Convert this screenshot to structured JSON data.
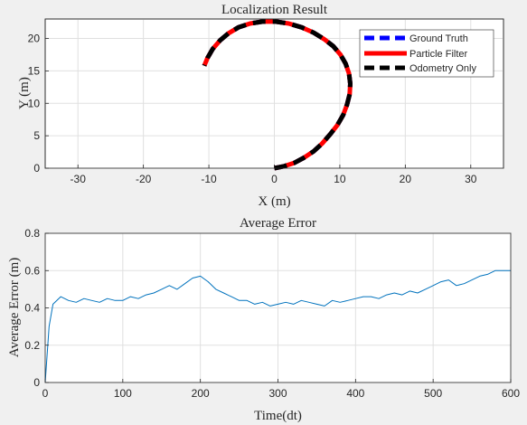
{
  "chart_data": [
    {
      "type": "line",
      "title": "Localization Result",
      "xlabel": "X (m)",
      "ylabel": "Y (m)",
      "xlim": [
        -35,
        35
      ],
      "ylim": [
        0,
        23
      ],
      "xticks": [
        -30,
        -20,
        -10,
        0,
        10,
        20,
        30
      ],
      "yticks": [
        0,
        5,
        10,
        15,
        20
      ],
      "grid": true,
      "legend": "top-right",
      "series": [
        {
          "name": "Ground Truth",
          "color": "#0000ff",
          "line_style": "dashed",
          "x": [
            0,
            1.5,
            3,
            4.5,
            6,
            7.3,
            8.5,
            9.6,
            10.5,
            11.1,
            11.5,
            11.6,
            11.4,
            10.9,
            10.1,
            9.0,
            7.6,
            6.0,
            4.2,
            2.2,
            0.2,
            -1.8,
            -3.7,
            -5.5,
            -7.0,
            -8.3,
            -9.4,
            -10.2,
            -10.7
          ],
          "y": [
            0,
            0.3,
            0.8,
            1.6,
            2.6,
            3.8,
            5.2,
            6.6,
            8.2,
            9.8,
            11.4,
            13.0,
            14.6,
            16.1,
            17.5,
            18.8,
            19.9,
            20.9,
            21.7,
            22.3,
            22.6,
            22.6,
            22.3,
            21.7,
            20.8,
            19.7,
            18.4,
            17.0,
            15.8
          ]
        },
        {
          "name": "Particle Filter",
          "color": "#ff0000",
          "line_style": "solid",
          "x": [
            0,
            1.5,
            3,
            4.5,
            6,
            7.3,
            8.5,
            9.6,
            10.5,
            11.1,
            11.5,
            11.6,
            11.4,
            10.9,
            10.1,
            9.0,
            7.6,
            6.0,
            4.2,
            2.2,
            0.2,
            -1.8,
            -3.7,
            -5.5,
            -7.0,
            -8.3,
            -9.4,
            -10.2,
            -10.7
          ],
          "y": [
            0,
            0.3,
            0.8,
            1.6,
            2.6,
            3.8,
            5.2,
            6.6,
            8.2,
            9.8,
            11.4,
            13.0,
            14.6,
            16.1,
            17.5,
            18.8,
            19.9,
            20.9,
            21.7,
            22.3,
            22.6,
            22.6,
            22.3,
            21.7,
            20.8,
            19.7,
            18.4,
            17.0,
            15.8
          ]
        },
        {
          "name": "Odometry Only",
          "color": "#000000",
          "line_style": "dashed",
          "x": [
            0,
            1.5,
            3,
            4.5,
            6,
            7.3,
            8.5,
            9.6,
            10.5,
            11.1,
            11.5,
            11.6,
            11.4,
            10.9,
            10.1,
            9.0,
            7.6,
            6.0,
            4.2,
            2.2,
            0.2,
            -1.8,
            -3.7,
            -5.5,
            -7.0,
            -8.3,
            -9.4,
            -10.2,
            -10.7
          ],
          "y": [
            0,
            0.3,
            0.8,
            1.6,
            2.6,
            3.8,
            5.2,
            6.6,
            8.2,
            9.8,
            11.4,
            13.0,
            14.6,
            16.1,
            17.5,
            18.8,
            19.9,
            20.9,
            21.7,
            22.3,
            22.6,
            22.6,
            22.3,
            21.7,
            20.8,
            19.7,
            18.4,
            17.0,
            15.8
          ]
        }
      ]
    },
    {
      "type": "line",
      "title": "Average Error",
      "xlabel": "Time(dt)",
      "ylabel": "Average Error (m)",
      "xlim": [
        0,
        600
      ],
      "ylim": [
        0,
        0.8
      ],
      "xticks": [
        0,
        100,
        200,
        300,
        400,
        500,
        600
      ],
      "yticks": [
        0,
        0.2,
        0.4,
        0.6,
        0.8
      ],
      "grid": true,
      "series": [
        {
          "color": "#0072bd",
          "line_style": "solid",
          "x": [
            0,
            5,
            10,
            20,
            30,
            40,
            50,
            60,
            70,
            80,
            90,
            100,
            110,
            120,
            130,
            140,
            150,
            160,
            170,
            180,
            190,
            200,
            210,
            220,
            230,
            240,
            250,
            260,
            270,
            280,
            290,
            300,
            310,
            320,
            330,
            340,
            350,
            360,
            370,
            380,
            390,
            400,
            410,
            420,
            430,
            440,
            450,
            460,
            470,
            480,
            490,
            500,
            510,
            520,
            530,
            540,
            550,
            560,
            570,
            580,
            590,
            600
          ],
          "y": [
            0,
            0.3,
            0.42,
            0.46,
            0.44,
            0.43,
            0.45,
            0.44,
            0.43,
            0.45,
            0.44,
            0.44,
            0.46,
            0.45,
            0.47,
            0.48,
            0.5,
            0.52,
            0.5,
            0.53,
            0.56,
            0.57,
            0.54,
            0.5,
            0.48,
            0.46,
            0.44,
            0.44,
            0.42,
            0.43,
            0.41,
            0.42,
            0.43,
            0.42,
            0.44,
            0.43,
            0.42,
            0.41,
            0.44,
            0.43,
            0.44,
            0.45,
            0.46,
            0.46,
            0.45,
            0.47,
            0.48,
            0.47,
            0.49,
            0.48,
            0.5,
            0.52,
            0.54,
            0.55,
            0.52,
            0.53,
            0.55,
            0.57,
            0.58,
            0.6,
            0.6,
            0.6
          ]
        }
      ]
    }
  ]
}
